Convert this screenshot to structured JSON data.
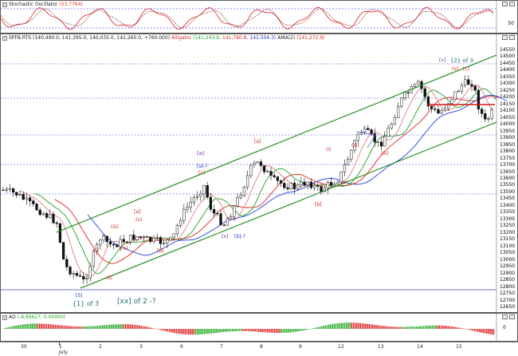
{
  "stochastic": {
    "title": "Stochastic Oscillator",
    "value": "(53.7764)",
    "scale": [
      "50"
    ]
  },
  "price": {
    "title": "SPFB.RTS",
    "ohlc": "(140,490.0, 141,395.0, 140,035.0, 141,260.0, +760.000)",
    "alligator_label": "Alligator",
    "alligator_values": [
      "(141,243.9,",
      "141,780.8,",
      "141,504.3)"
    ],
    "ama_label": "AMA(2)",
    "ama_value": "(141,272.9)",
    "scale": [
      "14550",
      "14500",
      "14450",
      "14400",
      "14350",
      "14300",
      "14250",
      "14200",
      "14150",
      "14100",
      "14050",
      "14000",
      "13950",
      "13900",
      "13850",
      "13800",
      "13750",
      "13700",
      "13650",
      "13600",
      "13550",
      "13500",
      "13450",
      "13400",
      "13350",
      "13300",
      "13250",
      "13200",
      "13150",
      "13100",
      "13050",
      "13000",
      "12950",
      "12900",
      "12850",
      "12800",
      "12750",
      "12700",
      "12650"
    ],
    "wave_labels": [
      {
        "text": "[v]",
        "color": "#7030a0"
      },
      {
        "text": "{2} of 3",
        "color": "#20706a"
      },
      {
        "text": "(v)",
        "color": "#d02020"
      },
      {
        "text": "[c]",
        "color": "#d02020"
      },
      {
        "text": "[w]",
        "color": "#7030a0"
      },
      {
        "text": "[a]-?",
        "color": "#2030c0"
      },
      {
        "text": "[c]",
        "color": "#d02020"
      },
      {
        "text": "[a]",
        "color": "#d02020"
      },
      {
        "text": "(iii)",
        "color": "#d02020"
      },
      {
        "text": "(i)",
        "color": "#d02020"
      },
      {
        "text": "(iv)",
        "color": "#d02020"
      },
      {
        "text": "(ii)",
        "color": "#d02020"
      },
      {
        "text": "[b]",
        "color": "#d02020"
      },
      {
        "text": "[a]",
        "color": "#d02020"
      },
      {
        "text": "(v)",
        "color": "#d02020"
      },
      {
        "text": "(iii)",
        "color": "#d02020"
      },
      {
        "text": "(iv)",
        "color": "#d02020"
      },
      {
        "text": "(ii)",
        "color": "#d02020"
      },
      {
        "text": "(i)",
        "color": "#d02020"
      },
      {
        "text": "[b]",
        "color": "#d02020"
      },
      {
        "text": "[x]",
        "color": "#7030a0"
      },
      {
        "text": "[b]-?",
        "color": "#2030c0"
      },
      {
        "text": "[5]",
        "color": "#2030c0"
      },
      {
        "text": "{1} of 3",
        "color": "#20706a"
      },
      {
        "text": "[xx] of 2 -?",
        "color": "#20706a"
      }
    ]
  },
  "ao": {
    "title": "AO",
    "values": "(-8.69627, 0.00000)",
    "scale": [
      "0"
    ]
  },
  "dates": [
    "30",
    "1",
    "2",
    "3",
    "6",
    "7",
    "8",
    "9",
    "12",
    "13",
    "14",
    "15"
  ],
  "month_label": "July"
}
